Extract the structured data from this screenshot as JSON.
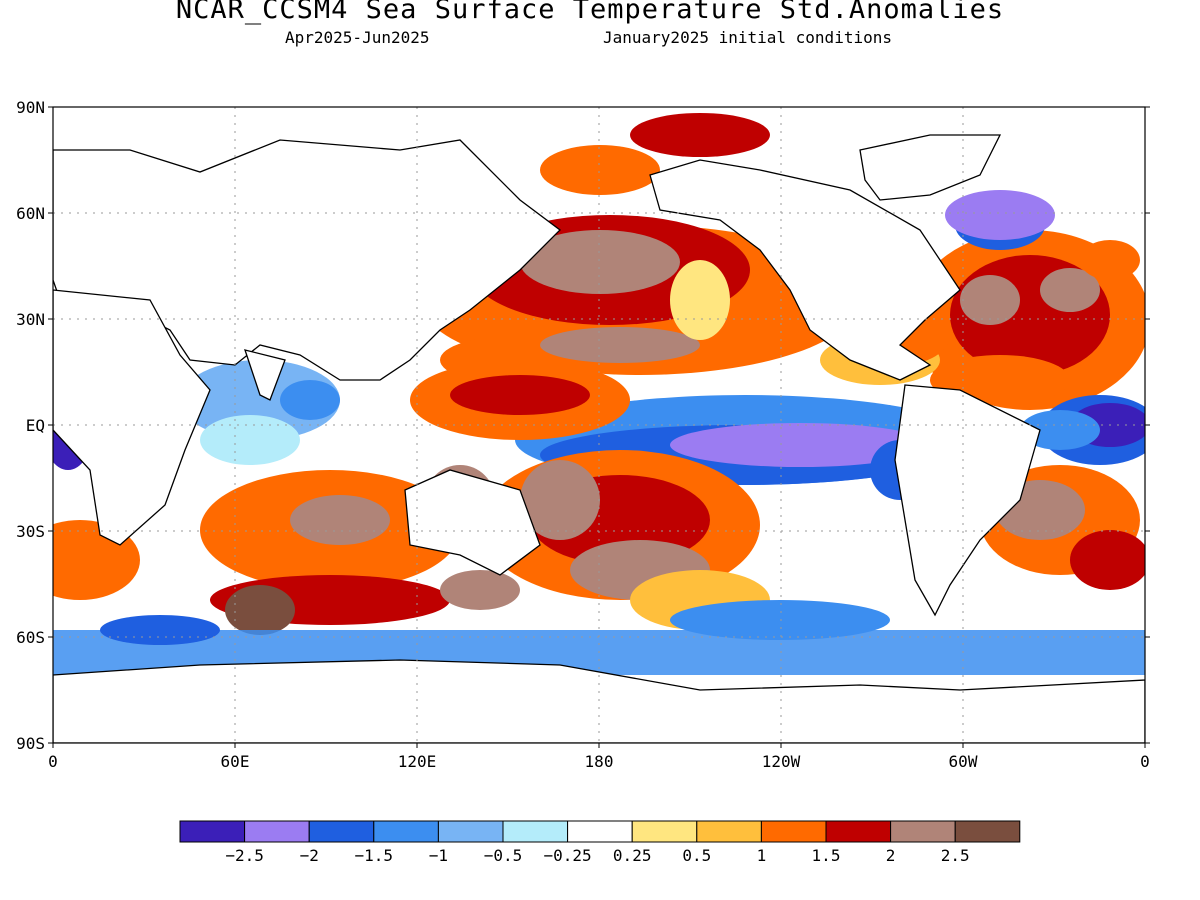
{
  "header": {
    "title": "NCAR_CCSM4 Sea Surface Temperature Std.Anomalies",
    "period": "Apr2025-Jun2025",
    "init": "January2025 initial conditions"
  },
  "map": {
    "lat_labels": [
      "90N",
      "60N",
      "30N",
      "EQ",
      "30S",
      "60S",
      "90S"
    ],
    "lon_labels": [
      "0",
      "60E",
      "120E",
      "180",
      "120W",
      "60W",
      "0"
    ]
  },
  "colorbar": {
    "colors": [
      "#3b1fb8",
      "#9b7cf2",
      "#1f5fe0",
      "#3c8ef0",
      "#78b4f4",
      "#b4ecfa",
      "#ffffff",
      "#ffe680",
      "#ffbf3c",
      "#ff6a00",
      "#bf0000",
      "#b08478",
      "#7a4e3e"
    ],
    "labels": [
      "-2.5",
      "-2",
      "-1.5",
      "-1",
      "-0.5",
      "-0.25",
      "0.25",
      "0.5",
      "1",
      "1.5",
      "2",
      "2.5"
    ]
  }
}
